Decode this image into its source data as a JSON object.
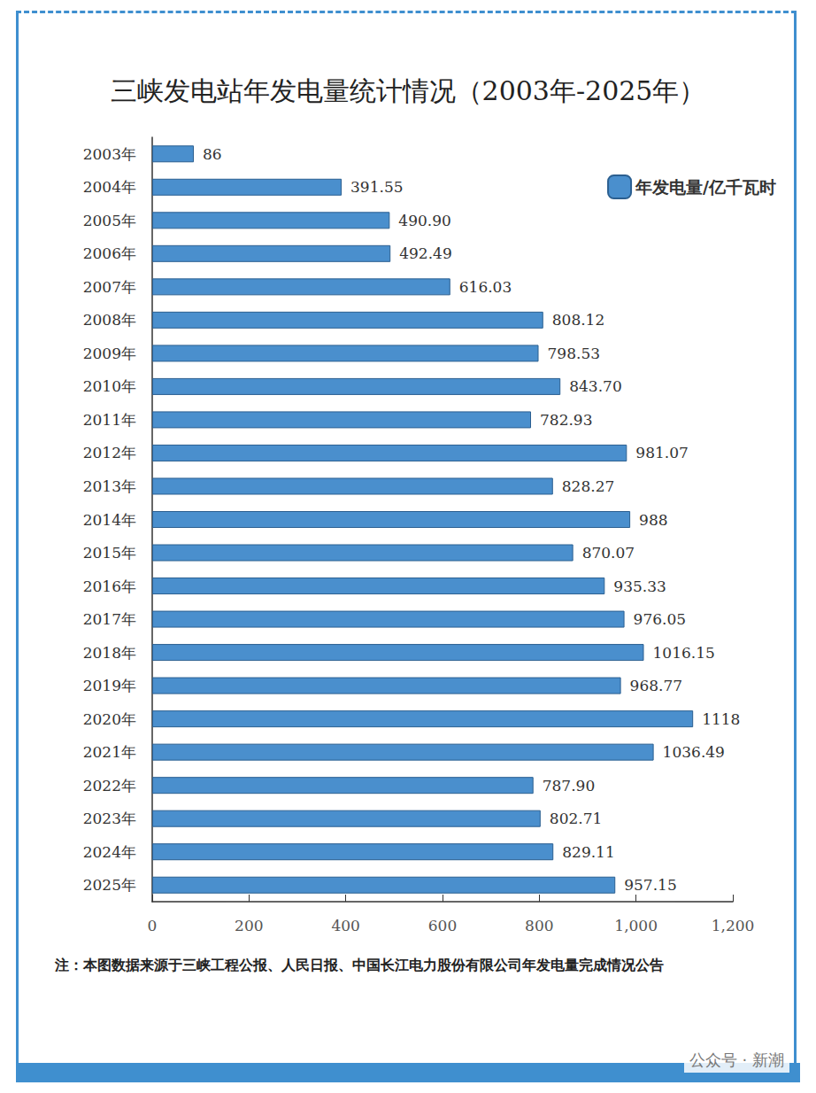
{
  "chart_data": {
    "type": "bar",
    "title": "三峡发电站年发电量统计情况（2003年-2025年）",
    "orientation": "horizontal",
    "categories": [
      "2003年",
      "2004年",
      "2005年",
      "2006年",
      "2007年",
      "2008年",
      "2009年",
      "2010年",
      "2011年",
      "2012年",
      "2013年",
      "2014年",
      "2015年",
      "2016年",
      "2017年",
      "2018年",
      "2019年",
      "2020年",
      "2021年",
      "2022年",
      "2023年",
      "2024年",
      "2025年"
    ],
    "series": [
      {
        "name": "年发电量/亿千瓦时",
        "color": "#4a8fcd",
        "values": [
          86,
          391.55,
          490.9,
          492.49,
          616.03,
          808.12,
          798.53,
          843.7,
          782.93,
          981.07,
          828.27,
          988,
          870.07,
          935.33,
          976.05,
          1016.15,
          968.77,
          1118,
          1036.49,
          787.9,
          802.71,
          829.11,
          957.15
        ],
        "value_labels": [
          "86",
          "391.55",
          "490.90",
          "492.49",
          "616.03",
          "808.12",
          "798.53",
          "843.70",
          "782.93",
          "981.07",
          "828.27",
          "988",
          "870.07",
          "935.33",
          "976.05",
          "1016.15",
          "968.77",
          "1118",
          "1036.49",
          "787.90",
          "802.71",
          "829.11",
          "957.15"
        ]
      }
    ],
    "xlim": [
      0,
      1200
    ],
    "xticks": [
      0,
      200,
      400,
      600,
      800,
      1000,
      1200
    ],
    "grid": false,
    "legend": "top-right",
    "data_labels": true,
    "note": "注：本图数据来源于三峡工程公报、人民日报、中国长江电力股份有限公司年发电量完成情况公告",
    "watermark": "公众号 · 新潮"
  }
}
